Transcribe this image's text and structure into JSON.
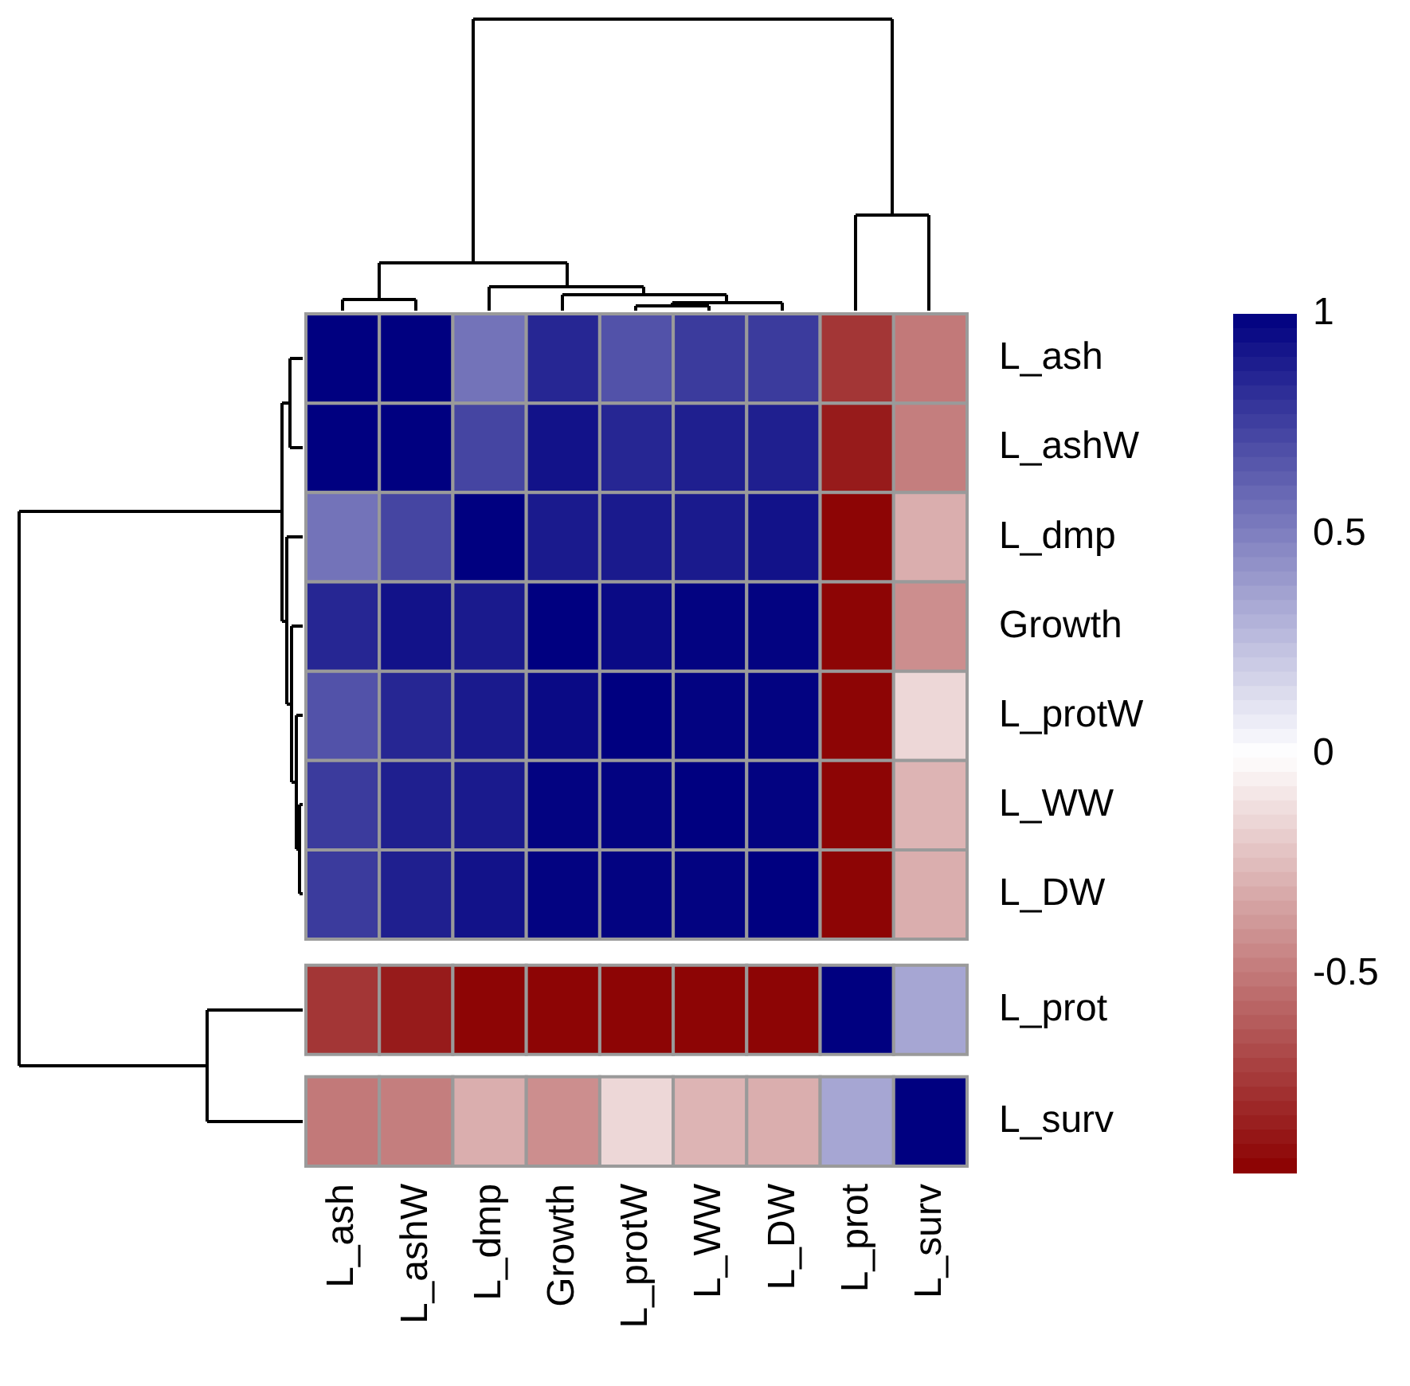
{
  "chart_data": {
    "type": "heatmap",
    "categories": [
      "L_ash",
      "L_ashW",
      "L_dmp",
      "Growth",
      "L_protW",
      "L_WW",
      "L_DW",
      "L_prot",
      "L_surv"
    ],
    "y_categories": [
      "L_ash",
      "L_ashW",
      "L_dmp",
      "Growth",
      "L_protW",
      "L_WW",
      "L_DW",
      "L_prot",
      "L_surv"
    ],
    "cells": [
      [
        1,
        1,
        0.55,
        0.85,
        0.68,
        0.77,
        0.77,
        -0.75,
        -0.5
      ],
      [
        1,
        1,
        0.73,
        0.93,
        0.85,
        0.88,
        0.88,
        -0.85,
        -0.48
      ],
      [
        0.55,
        0.73,
        1,
        0.9,
        0.9,
        0.9,
        0.93,
        -0.93,
        -0.3
      ],
      [
        0.85,
        0.93,
        0.9,
        1,
        0.96,
        0.99,
        0.99,
        -0.93,
        -0.42
      ],
      [
        0.68,
        0.85,
        0.9,
        0.96,
        1,
        0.99,
        0.99,
        -0.93,
        -0.15
      ],
      [
        0.77,
        0.88,
        0.9,
        0.99,
        0.99,
        1,
        0.99,
        -0.93,
        -0.28
      ],
      [
        0.77,
        0.88,
        0.93,
        0.99,
        0.99,
        0.99,
        1,
        -0.93,
        -0.3
      ],
      [
        -0.75,
        -0.85,
        -0.93,
        -0.93,
        -0.93,
        -0.93,
        -0.93,
        1,
        0.35
      ],
      [
        -0.5,
        -0.48,
        -0.3,
        -0.42,
        -0.15,
        -0.28,
        -0.3,
        0.35,
        1
      ]
    ],
    "clim": [
      -0.95,
      1
    ],
    "cticks": [
      -0.5,
      0,
      0.5,
      1
    ]
  }
}
